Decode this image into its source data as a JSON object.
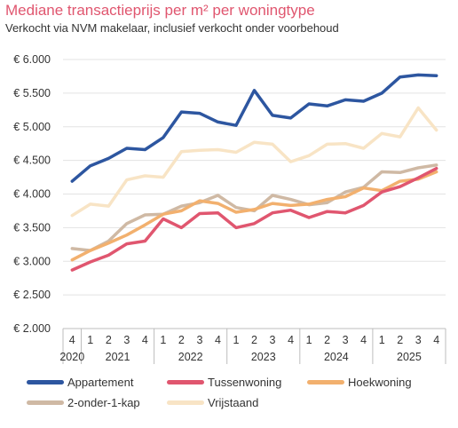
{
  "title": "Mediane transactieprijs per m² per woningtype",
  "subtitle": "Verkocht via NVM makelaar, inclusief verkocht onder voorbehoud",
  "chart_data": {
    "type": "line",
    "quarters": [
      "4",
      "1",
      "2",
      "3",
      "4",
      "1",
      "2",
      "3",
      "4",
      "1",
      "2",
      "3",
      "4",
      "1",
      "2",
      "3",
      "4",
      "1",
      "2",
      "3",
      "4"
    ],
    "years": [
      {
        "label": "2020",
        "count": 1
      },
      {
        "label": "2021",
        "count": 4
      },
      {
        "label": "2022",
        "count": 4
      },
      {
        "label": "2023",
        "count": 4
      },
      {
        "label": "2024",
        "count": 4
      },
      {
        "label": "2025",
        "count": 4
      }
    ],
    "y_ticks": [
      "€ 2.000",
      "€ 2.500",
      "€ 3.000",
      "€ 3.500",
      "€ 4.000",
      "€ 4.500",
      "€ 5.000",
      "€ 5.500",
      "€ 6.000"
    ],
    "ylim": [
      2000,
      6000
    ],
    "grid": true,
    "legend_position": "bottom",
    "series": [
      {
        "name": "Appartement",
        "color": "#2d56a0",
        "values": [
          4190,
          4420,
          4530,
          4680,
          4660,
          4840,
          5220,
          5200,
          5070,
          5020,
          5540,
          5170,
          5130,
          5340,
          5310,
          5400,
          5380,
          5500,
          5740,
          5770,
          5760
        ]
      },
      {
        "name": "Tussenwoning",
        "color": "#e0566f",
        "values": [
          2870,
          2990,
          3090,
          3260,
          3300,
          3630,
          3500,
          3710,
          3720,
          3500,
          3560,
          3720,
          3760,
          3650,
          3740,
          3720,
          3830,
          4030,
          4110,
          4240,
          4380
        ]
      },
      {
        "name": "Hoekwoning",
        "color": "#f2b06e",
        "values": [
          3020,
          3160,
          3270,
          3390,
          3540,
          3700,
          3750,
          3900,
          3860,
          3730,
          3770,
          3860,
          3830,
          3850,
          3920,
          3960,
          4090,
          4050,
          4190,
          4220,
          4330
        ]
      },
      {
        "name": "2-onder-1-kap",
        "color": "#cfb9a4",
        "values": [
          3190,
          3160,
          3300,
          3560,
          3690,
          3700,
          3820,
          3870,
          3980,
          3800,
          3750,
          3980,
          3920,
          3840,
          3870,
          4030,
          4100,
          4330,
          4320,
          4390,
          4430
        ]
      },
      {
        "name": "Vrijstaand",
        "color": "#f8e4c5",
        "values": [
          3680,
          3850,
          3820,
          4210,
          4270,
          4250,
          4630,
          4650,
          4660,
          4620,
          4770,
          4740,
          4480,
          4570,
          4740,
          4750,
          4680,
          4900,
          4850,
          5280,
          4950
        ]
      }
    ]
  }
}
